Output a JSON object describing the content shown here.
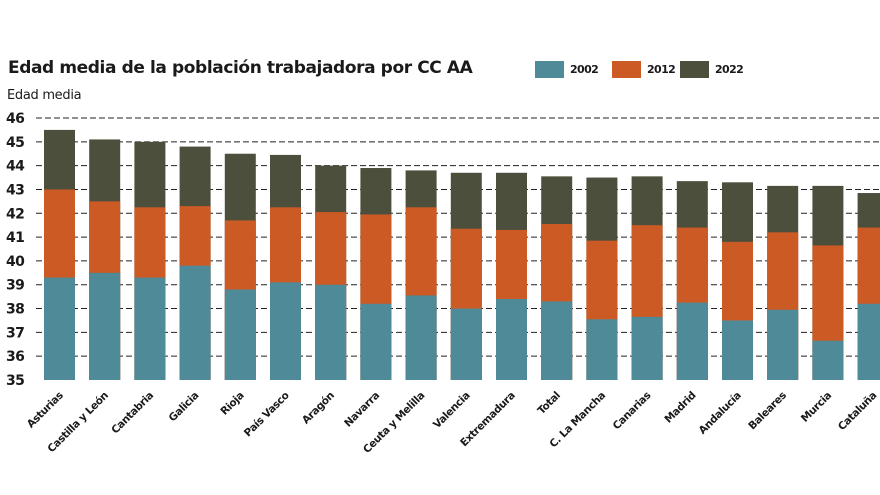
{
  "chart_data": {
    "type": "bar",
    "stacked_display": "overlapping",
    "title": "Edad media de la población trabajadora por CC AA",
    "ylabel": "Edad media",
    "xlabel": "",
    "ylim": [
      35,
      46
    ],
    "yticks": [
      35,
      36,
      37,
      38,
      39,
      40,
      41,
      42,
      43,
      44,
      45,
      46
    ],
    "grid": true,
    "legend_position": "top-right",
    "categories": [
      "Asturias",
      "Castilla y León",
      "Cantabria",
      "Galicia",
      "Rioja",
      "País Vasco",
      "Aragón",
      "Navarra",
      "Ceuta y Melilla",
      "Valencia",
      "Extremadura",
      "Total",
      "C. La Mancha",
      "Canarias",
      "Madrid",
      "Andalucía",
      "Baleares",
      "Murcia",
      "Cataluña"
    ],
    "series": [
      {
        "name": "2002",
        "color": "#4f8a99",
        "values": [
          39.3,
          39.5,
          39.3,
          39.8,
          38.8,
          39.1,
          39.0,
          38.2,
          38.55,
          38.0,
          38.4,
          38.3,
          37.55,
          37.65,
          38.25,
          37.5,
          37.95,
          36.65,
          38.2
        ]
      },
      {
        "name": "2012",
        "color": "#cc5a25",
        "values": [
          43.0,
          42.5,
          42.25,
          42.3,
          41.7,
          42.25,
          42.05,
          41.95,
          42.25,
          41.35,
          41.3,
          41.55,
          40.85,
          41.5,
          41.4,
          40.8,
          41.2,
          40.65,
          41.4
        ]
      },
      {
        "name": "2022",
        "color": "#4d4f3d",
        "values": [
          45.5,
          45.1,
          45.0,
          44.8,
          44.5,
          44.45,
          44.0,
          43.9,
          43.8,
          43.7,
          43.7,
          43.55,
          43.5,
          43.55,
          43.35,
          43.3,
          43.15,
          43.15,
          42.85
        ]
      }
    ]
  }
}
